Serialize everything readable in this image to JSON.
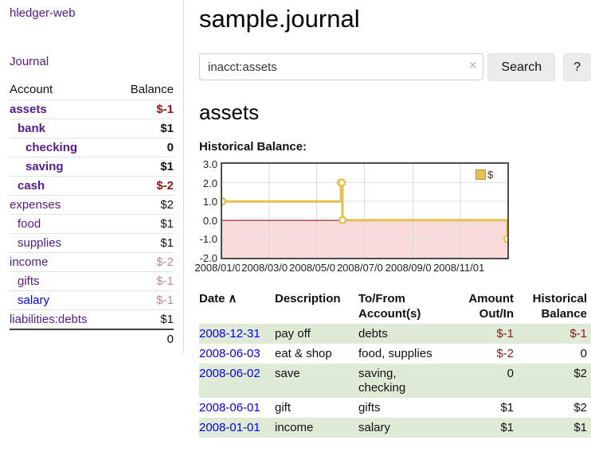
{
  "app": {
    "brand": "hledger-web",
    "nav_journal": "Journal"
  },
  "sidebar": {
    "table_headers": {
      "account": "Account",
      "balance": "Balance"
    },
    "accounts": [
      {
        "name": "assets",
        "indent": 1,
        "bold": true,
        "balance": "$-1",
        "balance_class": "neg-strong"
      },
      {
        "name": "bank",
        "indent": 2,
        "bold": true,
        "balance": "$1",
        "balance_class": "pos-strong"
      },
      {
        "name": "checking",
        "indent": 3,
        "bold": true,
        "balance": "0",
        "balance_class": "pos-strong"
      },
      {
        "name": "saving",
        "indent": 3,
        "bold": true,
        "balance": "$1",
        "balance_class": "pos-strong"
      },
      {
        "name": "cash",
        "indent": 2,
        "bold": true,
        "balance": "$-2",
        "balance_class": "neg-strong"
      },
      {
        "name": "expenses",
        "indent": 1,
        "bold": false,
        "balance": "$2",
        "balance_class": "pos"
      },
      {
        "name": "food",
        "indent": 2,
        "bold": false,
        "balance": "$1",
        "balance_class": "pos"
      },
      {
        "name": "supplies",
        "indent": 2,
        "bold": false,
        "balance": "$1",
        "balance_class": "pos"
      },
      {
        "name": "income",
        "indent": 1,
        "bold": false,
        "balance": "$-2",
        "balance_class": "neg-soft"
      },
      {
        "name": "gifts",
        "indent": 2,
        "bold": false,
        "balance": "$-1",
        "balance_class": "neg-soft"
      },
      {
        "name": "salary",
        "indent": 2,
        "bold": false,
        "balance": "$-1",
        "balance_class": "neg-soft",
        "unvisited": true
      },
      {
        "name": "liabilities:debts",
        "indent": 1,
        "bold": false,
        "balance": "$1",
        "balance_class": "pos"
      }
    ],
    "total": "0"
  },
  "header": {
    "title": "sample.journal"
  },
  "search": {
    "value": "inacct:assets",
    "clear_icon": "×",
    "button_label": "Search",
    "help_label": "?"
  },
  "main": {
    "account_heading": "assets",
    "chart_label": "Historical Balance:"
  },
  "chart_data": {
    "type": "line",
    "step": true,
    "title": "Historical Balance",
    "series": [
      {
        "name": "$",
        "points": [
          {
            "date": "2008-01-01",
            "value": 1
          },
          {
            "date": "2008-06-01",
            "value": 2
          },
          {
            "date": "2008-06-02",
            "value": 2
          },
          {
            "date": "2008-06-03",
            "value": 0
          },
          {
            "date": "2008-12-31",
            "value": -1
          }
        ]
      }
    ],
    "x_range": [
      "2008-01-01",
      "2008-12-31"
    ],
    "ylim": [
      -2,
      3
    ],
    "yticks": [
      {
        "label": "3.0",
        "value": 3
      },
      {
        "label": "2.0",
        "value": 2
      },
      {
        "label": "1.0",
        "value": 1
      },
      {
        "label": "0.0",
        "value": 0
      },
      {
        "label": "-1.0",
        "value": -1
      },
      {
        "label": "-2.0",
        "value": -2
      }
    ],
    "xticks": [
      {
        "label": "2008/01/01",
        "date": "2008-01-01"
      },
      {
        "label": "2008/03/01",
        "date": "2008-03-01"
      },
      {
        "label": "2008/05/01",
        "date": "2008-05-01"
      },
      {
        "label": "2008/07/01",
        "date": "2008-07-01"
      },
      {
        "label": "2008/09/01",
        "date": "2008-09-01"
      },
      {
        "label": "2008/11/01",
        "date": "2008-11-01"
      }
    ],
    "legend": {
      "label": "$",
      "position": "top-right"
    },
    "grid": true,
    "negative_band": true
  },
  "table": {
    "headers": {
      "date": "Date",
      "sort_icon": "∧",
      "description": "Description",
      "accounts_line1": "To/From",
      "accounts_line2": "Account(s)",
      "amount_line1": "Amount",
      "amount_line2": "Out/In",
      "balance_line1": "Historical",
      "balance_line2": "Balance"
    },
    "rows": [
      {
        "date": "2008-12-31",
        "description": "pay off",
        "accounts": "debts",
        "amount": "$-1",
        "amount_negative": true,
        "balance": "$-1",
        "balance_negative": true
      },
      {
        "date": "2008-06-03",
        "description": "eat & shop",
        "accounts": "food, supplies",
        "amount": "$-2",
        "amount_negative": true,
        "balance": "0",
        "balance_negative": false
      },
      {
        "date": "2008-06-02",
        "description": "save",
        "accounts": "saving, checking",
        "amount": "0",
        "amount_negative": false,
        "balance": "$2",
        "balance_negative": false
      },
      {
        "date": "2008-06-01",
        "description": "gift",
        "accounts": "gifts",
        "amount": "$1",
        "amount_negative": false,
        "balance": "$2",
        "balance_negative": false
      },
      {
        "date": "2008-01-01",
        "description": "income",
        "accounts": "salary",
        "amount": "$1",
        "amount_negative": false,
        "balance": "$1",
        "balance_negative": false
      }
    ]
  },
  "colors": {
    "link_purple": "#551a8b",
    "link_blue": "#0000ee",
    "negative_strong": "#8b1717",
    "negative_soft": "#bc8b8b",
    "row_stripe_green": "#dfead7",
    "chart_line_gold": "#e7c14f",
    "chart_line_gold_border": "#b89530",
    "chart_negative_band_pink": "#f9dbdb",
    "chart_zero_line_red": "#800000"
  }
}
